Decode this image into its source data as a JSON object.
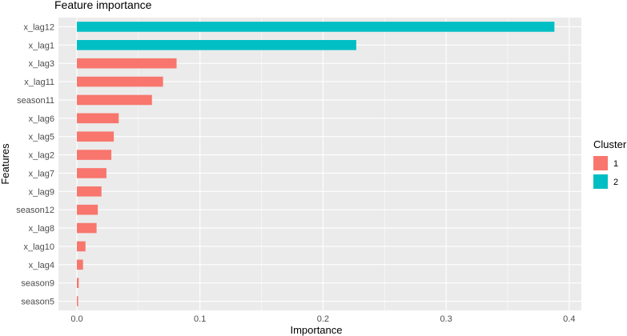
{
  "chart_data": {
    "type": "bar",
    "orientation": "horizontal",
    "title": "Feature importance",
    "xlabel": "Importance",
    "ylabel": "Features",
    "xlim": [
      0,
      0.4
    ],
    "xticks": [
      "0.0",
      "0.1",
      "0.2",
      "0.3",
      "0.4"
    ],
    "grid": true,
    "legend": {
      "title": "Cluster",
      "position": "right",
      "entries": [
        {
          "label": "1",
          "color": "#F8766D"
        },
        {
          "label": "2",
          "color": "#00BFC4"
        }
      ]
    },
    "bars": [
      {
        "feature": "x_lag12",
        "value": 0.388,
        "cluster": "2"
      },
      {
        "feature": "x_lag1",
        "value": 0.227,
        "cluster": "2"
      },
      {
        "feature": "x_lag3",
        "value": 0.081,
        "cluster": "1"
      },
      {
        "feature": "x_lag11",
        "value": 0.07,
        "cluster": "1"
      },
      {
        "feature": "season11",
        "value": 0.061,
        "cluster": "1"
      },
      {
        "feature": "x_lag6",
        "value": 0.034,
        "cluster": "1"
      },
      {
        "feature": "x_lag5",
        "value": 0.03,
        "cluster": "1"
      },
      {
        "feature": "x_lag2",
        "value": 0.028,
        "cluster": "1"
      },
      {
        "feature": "x_lag7",
        "value": 0.024,
        "cluster": "1"
      },
      {
        "feature": "x_lag9",
        "value": 0.02,
        "cluster": "1"
      },
      {
        "feature": "season12",
        "value": 0.017,
        "cluster": "1"
      },
      {
        "feature": "x_lag8",
        "value": 0.016,
        "cluster": "1"
      },
      {
        "feature": "x_lag10",
        "value": 0.007,
        "cluster": "1"
      },
      {
        "feature": "x_lag4",
        "value": 0.005,
        "cluster": "1"
      },
      {
        "feature": "season9",
        "value": 0.0015,
        "cluster": "1"
      },
      {
        "feature": "season5",
        "value": 0.001,
        "cluster": "1"
      }
    ],
    "colors": {
      "panel": "#EBEBEB",
      "grid": "#FFFFFF",
      "text": "#000000",
      "tick_text": "#4D4D4D"
    }
  }
}
